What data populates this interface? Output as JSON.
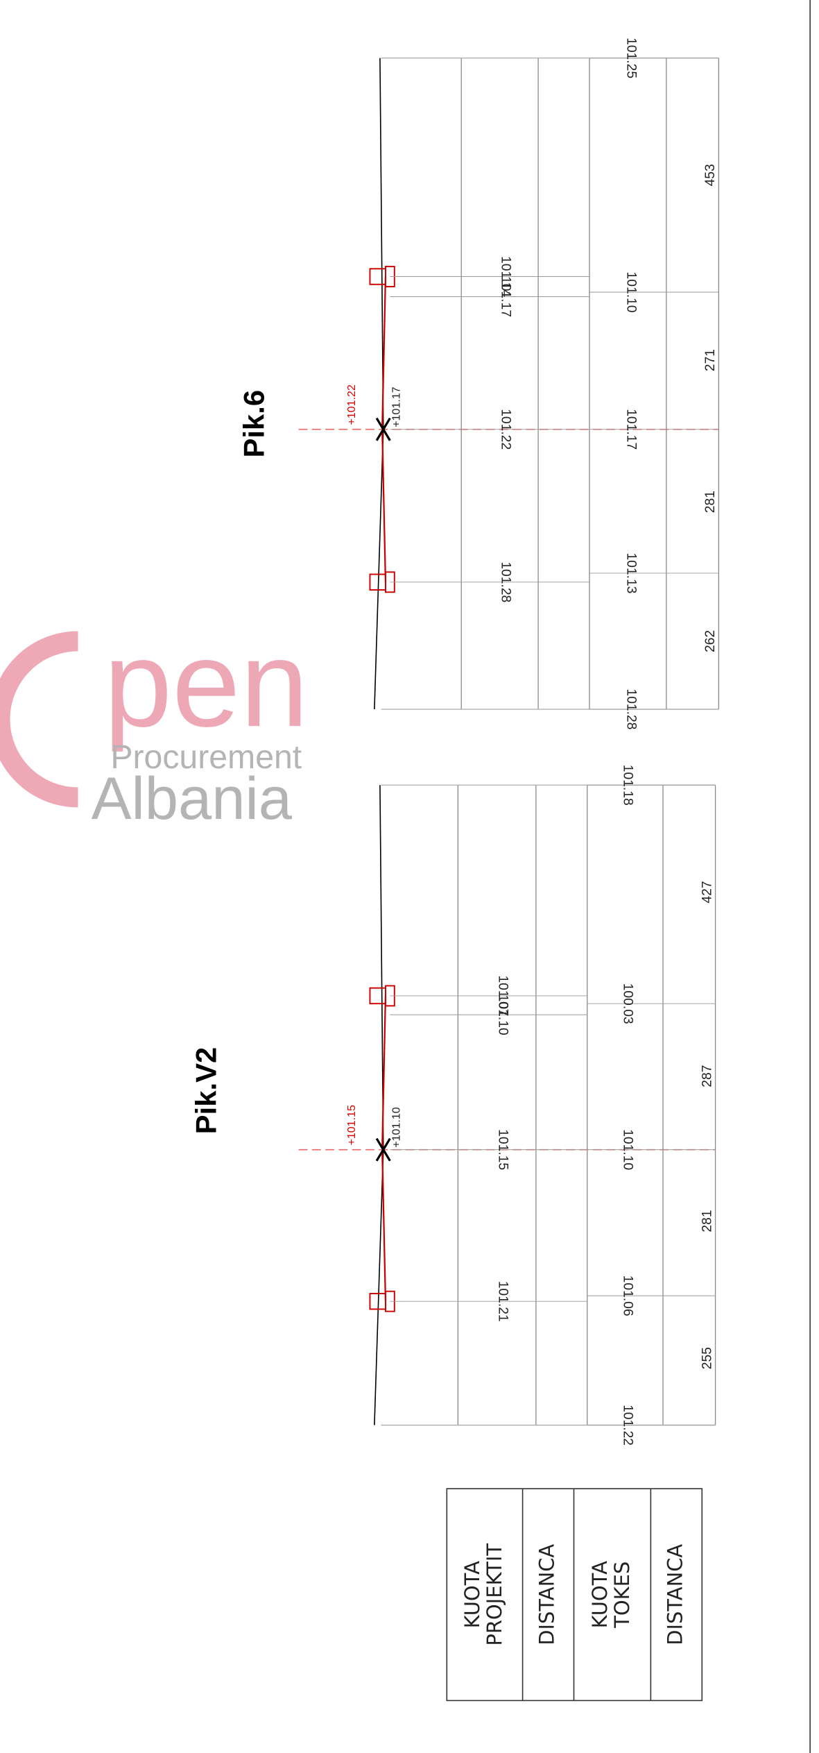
{
  "sections": [
    {
      "title": "Pik.V2",
      "design_levels": [
        "101.21",
        "101.15",
        "101.10",
        "101.07"
      ],
      "ground_levels": [
        "101.22",
        "101.06",
        "101.10",
        "100.03",
        "101.18"
      ],
      "distances": [
        "255",
        "281",
        "287",
        "427"
      ],
      "axis_design": "+101.15",
      "axis_ground": "+101.10"
    },
    {
      "title": "Pik.6",
      "design_levels": [
        "101.28",
        "101.22",
        "101.17",
        "101.14"
      ],
      "ground_levels": [
        "101.28",
        "101.13",
        "101.17",
        "101.10",
        "101.25"
      ],
      "distances": [
        "262",
        "281",
        "271",
        "453"
      ],
      "axis_design": "+101.22",
      "axis_ground": "+101.17"
    }
  ],
  "legend": {
    "rows": [
      [
        "KUOTA",
        "PROJEKTIT"
      ],
      [
        "DISTANCA"
      ],
      [
        "KUOTA",
        "TOKES"
      ],
      [
        "DISTANCA"
      ]
    ]
  },
  "watermark": {
    "word": "pen",
    "line1": "Procurement",
    "line2": "Albania"
  }
}
